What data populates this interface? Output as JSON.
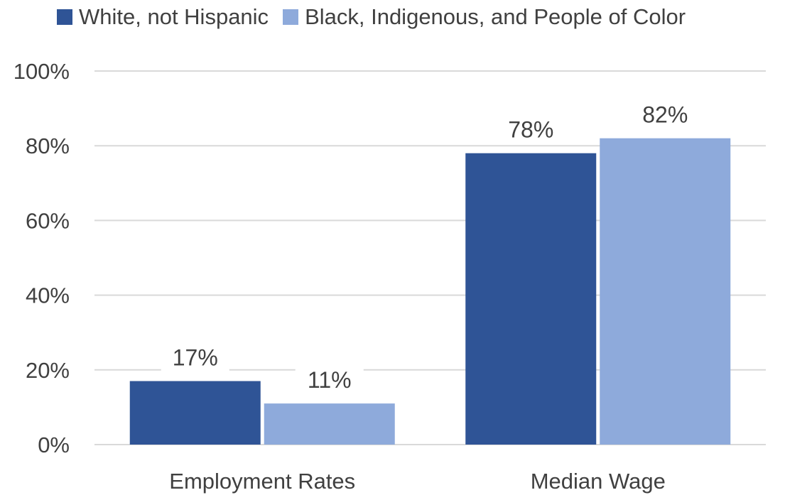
{
  "chart_data": {
    "type": "bar",
    "categories": [
      "Employment Rates",
      "Median Wage"
    ],
    "series": [
      {
        "name": "White, not Hispanic",
        "values": [
          17,
          78
        ],
        "labels": [
          "17%",
          "78%"
        ],
        "color": "#2f5496"
      },
      {
        "name": "Black, Indigenous, and People of Color",
        "values": [
          11,
          82
        ],
        "labels": [
          "11%",
          "82%"
        ],
        "color": "#8eaadb"
      }
    ],
    "ylim": [
      0,
      100
    ],
    "yticks": [
      0,
      20,
      40,
      60,
      80,
      100
    ],
    "ytick_labels": [
      "0%",
      "20%",
      "40%",
      "60%",
      "80%",
      "100%"
    ],
    "grid": true,
    "legend_position": "top",
    "gridline_color": "#d9d9d9",
    "text_color": "#404040"
  }
}
